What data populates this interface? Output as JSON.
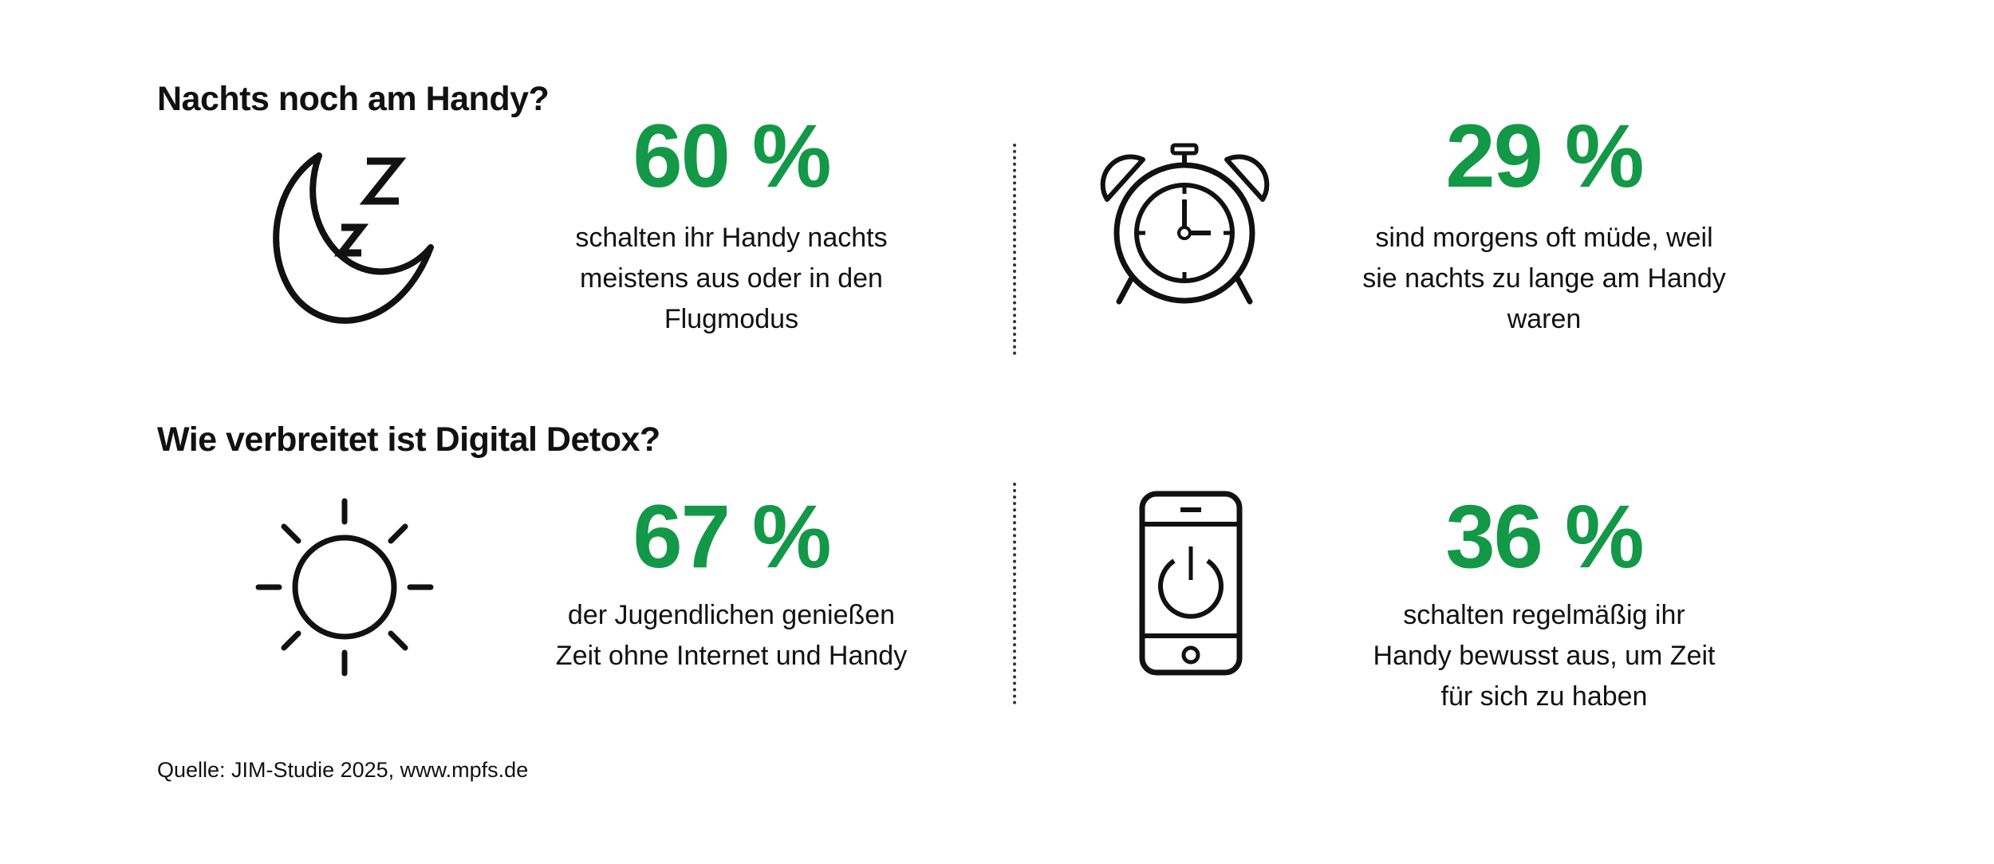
{
  "section1": {
    "title": "Nachts noch am Handy?",
    "stats": [
      {
        "icon": "moon-sleep-icon",
        "value": "60 %",
        "lines": [
          "schalten ihr Handy nachts",
          "meistens aus oder in den",
          "Flugmodus"
        ]
      },
      {
        "icon": "alarm-clock-icon",
        "value": "29 %",
        "lines": [
          "sind morgens oft müde, weil",
          "sie nachts zu lange am Handy",
          "waren"
        ]
      }
    ]
  },
  "section2": {
    "title": "Wie verbreitet ist Digital Detox?",
    "stats": [
      {
        "icon": "sun-icon",
        "value": "67 %",
        "lines": [
          "der Jugendlichen genießen",
          "Zeit ohne Internet und Handy"
        ]
      },
      {
        "icon": "phone-power-icon",
        "value": "36 %",
        "lines": [
          "schalten regelmäßig ihr",
          "Handy bewusst aus, um Zeit",
          "für sich zu haben"
        ]
      }
    ]
  },
  "source": "Quelle: JIM-Studie 2025, www.mpfs.de",
  "colors": {
    "accent": "#139847",
    "text": "#111111"
  }
}
